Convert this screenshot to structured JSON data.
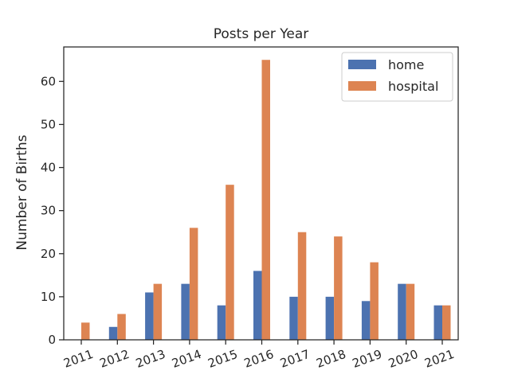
{
  "chart_data": {
    "type": "bar",
    "title": "Posts per Year",
    "xlabel": "",
    "ylabel": "Number of Births",
    "categories": [
      "2011",
      "2012",
      "2013",
      "2014",
      "2015",
      "2016",
      "2017",
      "2018",
      "2019",
      "2020",
      "2021"
    ],
    "series": [
      {
        "name": "home",
        "color": "#4c72b0",
        "values": [
          0,
          3,
          11,
          13,
          8,
          16,
          10,
          10,
          9,
          13,
          8
        ]
      },
      {
        "name": "hospital",
        "color": "#dd8452",
        "values": [
          4,
          6,
          13,
          26,
          36,
          65,
          25,
          24,
          18,
          13,
          8
        ]
      }
    ],
    "ylim": [
      0,
      68
    ],
    "yticks": [
      0,
      10,
      20,
      30,
      40,
      50,
      60
    ],
    "grid": false,
    "legend_position": "top-right"
  }
}
